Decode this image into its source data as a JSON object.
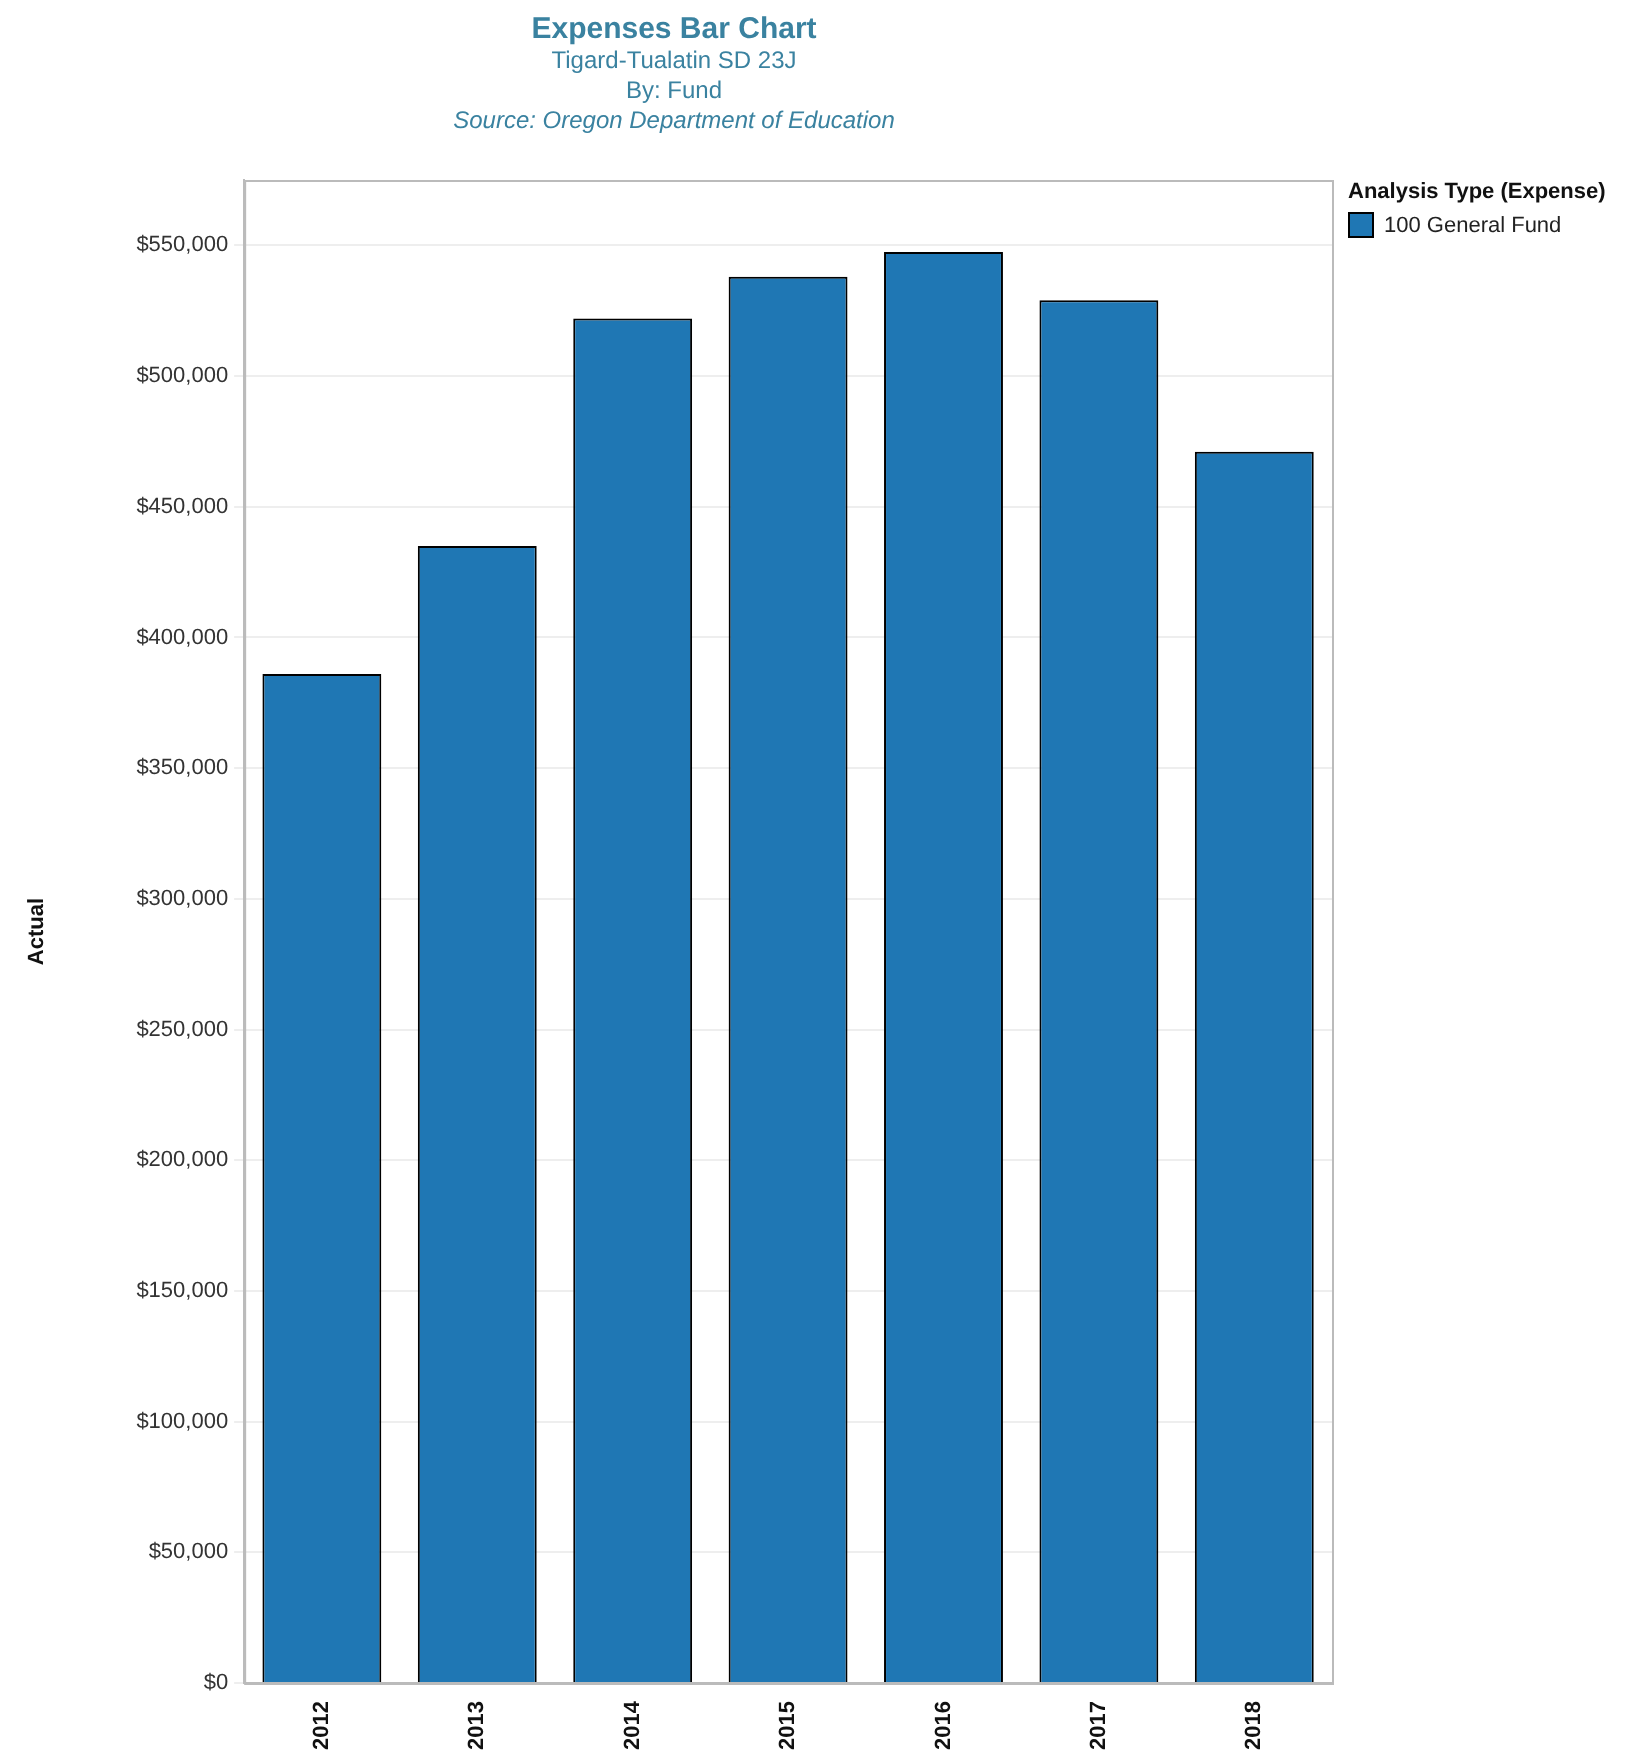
{
  "chart_data": {
    "type": "bar",
    "title": "Expenses Bar Chart",
    "subtitle": "Tigard-Tualatin SD 23J\nBy: Fund",
    "annotations": [
      "Source: Oregon Department of Education"
    ],
    "ylabel": "Actual",
    "legend_title": "Analysis Type (Expense)",
    "categories": [
      "2012",
      "2013",
      "2014",
      "2015",
      "2016",
      "2017",
      "2018"
    ],
    "series": [
      {
        "name": "100 General Fund",
        "color": "#1f77b4",
        "values": [
          386000,
          435000,
          522000,
          538000,
          547500,
          529000,
          471000
        ]
      }
    ],
    "ylim": [
      0,
      575000
    ],
    "yticks": [
      {
        "value": 0,
        "label": "$0"
      },
      {
        "value": 50000,
        "label": "$50,000"
      },
      {
        "value": 100000,
        "label": "$100,000"
      },
      {
        "value": 150000,
        "label": "$150,000"
      },
      {
        "value": 200000,
        "label": "$200,000"
      },
      {
        "value": 250000,
        "label": "$250,000"
      },
      {
        "value": 300000,
        "label": "$300,000"
      },
      {
        "value": 350000,
        "label": "$350,000"
      },
      {
        "value": 400000,
        "label": "$400,000"
      },
      {
        "value": 450000,
        "label": "$450,000"
      },
      {
        "value": 500000,
        "label": "$500,000"
      },
      {
        "value": 550000,
        "label": "$550,000"
      }
    ],
    "grid": "y",
    "legend": "top right"
  }
}
